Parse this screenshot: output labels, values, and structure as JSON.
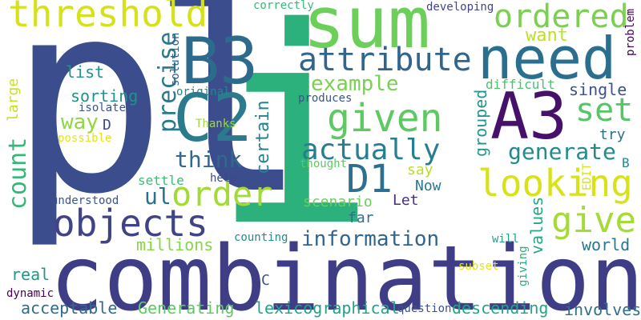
{
  "words": [
    {
      "text": "pl",
      "color": "#3b4d8c",
      "vertical": false
    },
    {
      "text": "i",
      "color": "#2cb17d",
      "vertical": false
    },
    {
      "text": "combination",
      "color": "#3e3d86",
      "vertical": false
    },
    {
      "text": "sum",
      "color": "#6ccf5a",
      "vertical": false
    },
    {
      "text": "need",
      "color": "#2a6f8e",
      "vertical": false
    },
    {
      "text": "B3",
      "color": "#2d6b8d",
      "vertical": false
    },
    {
      "text": "C2",
      "color": "#2b7a8d",
      "vertical": false
    },
    {
      "text": "A3",
      "color": "#46116a",
      "vertical": false
    },
    {
      "text": "threshold",
      "color": "#d5e21a",
      "vertical": false
    },
    {
      "text": "ordered",
      "color": "#7ad151",
      "vertical": false
    },
    {
      "text": "attribute",
      "color": "#31658e",
      "vertical": false
    },
    {
      "text": "given",
      "color": "#5ec962",
      "vertical": false
    },
    {
      "text": "set",
      "color": "#55c667",
      "vertical": false
    },
    {
      "text": "looking",
      "color": "#d8e219",
      "vertical": false
    },
    {
      "text": "actually",
      "color": "#277e8e",
      "vertical": false
    },
    {
      "text": "D1",
      "color": "#2c6f8e",
      "vertical": false
    },
    {
      "text": "order",
      "color": "#a2da37",
      "vertical": false
    },
    {
      "text": "objects",
      "color": "#404387",
      "vertical": false
    },
    {
      "text": "give",
      "color": "#a5db36",
      "vertical": false
    },
    {
      "text": "think",
      "color": "#31688e",
      "vertical": false
    },
    {
      "text": "generate",
      "color": "#238a8d",
      "vertical": false
    },
    {
      "text": "information",
      "color": "#31658e",
      "vertical": false
    },
    {
      "text": "example",
      "color": "#7ad151",
      "vertical": false
    },
    {
      "text": "want",
      "color": "#bddf26",
      "vertical": false
    },
    {
      "text": "precise",
      "color": "#2a788e",
      "vertical": true
    },
    {
      "text": "count",
      "color": "#35b779",
      "vertical": true
    },
    {
      "text": "certain",
      "color": "#26828e",
      "vertical": true
    },
    {
      "text": "grouped",
      "color": "#1f988b",
      "vertical": true
    },
    {
      "text": "values",
      "color": "#22a884",
      "vertical": true
    },
    {
      "text": "giving",
      "color": "#29af7f",
      "vertical": true
    },
    {
      "text": "large",
      "color": "#c8e020",
      "vertical": true
    },
    {
      "text": "solution",
      "color": "#33628d",
      "vertical": true
    },
    {
      "text": "problem",
      "color": "#440154",
      "vertical": true
    },
    {
      "text": "EDIT",
      "color": "#dde318",
      "vertical": true
    },
    {
      "text": "list",
      "color": "#21918c",
      "vertical": false
    },
    {
      "text": "sorting",
      "color": "#21918c",
      "vertical": false
    },
    {
      "text": "way",
      "color": "#8fd744",
      "vertical": false
    },
    {
      "text": "D",
      "color": "#3e4a89",
      "vertical": false
    },
    {
      "text": "isolate",
      "color": "#3b528b",
      "vertical": false
    },
    {
      "text": "possible",
      "color": "#e4e419",
      "vertical": false
    },
    {
      "text": "original",
      "color": "#25858e",
      "vertical": false
    },
    {
      "text": "Thanks",
      "color": "#9fda3a",
      "vertical": false
    },
    {
      "text": "produces",
      "color": "#39558c",
      "vertical": false
    },
    {
      "text": "thought",
      "color": "#5ec962",
      "vertical": false
    },
    {
      "text": "correctly",
      "color": "#37b878",
      "vertical": false
    },
    {
      "text": "developing",
      "color": "#414487",
      "vertical": false
    },
    {
      "text": "difficult",
      "color": "#4ac16d",
      "vertical": false
    },
    {
      "text": "single",
      "color": "#3b528b",
      "vertical": false
    },
    {
      "text": "try",
      "color": "#2c728e",
      "vertical": false
    },
    {
      "text": "B",
      "color": "#228b8d",
      "vertical": false
    },
    {
      "text": "say",
      "color": "#bade28",
      "vertical": false
    },
    {
      "text": "Now",
      "color": "#2a788e",
      "vertical": false
    },
    {
      "text": "Let",
      "color": "#472d7b",
      "vertical": false
    },
    {
      "text": "scenario",
      "color": "#6ccd5a",
      "vertical": false
    },
    {
      "text": "far",
      "color": "#2e6e8e",
      "vertical": false
    },
    {
      "text": "ul",
      "color": "#2d708e",
      "vertical": false
    },
    {
      "text": "settle",
      "color": "#3dbc74",
      "vertical": false
    },
    {
      "text": "help",
      "color": "#3e4989",
      "vertical": false
    },
    {
      "text": "understood",
      "color": "#3a548c",
      "vertical": false
    },
    {
      "text": "millions",
      "color": "#86d549",
      "vertical": false
    },
    {
      "text": "counting",
      "color": "#238a8d",
      "vertical": false
    },
    {
      "text": "will",
      "color": "#1fa287",
      "vertical": false
    },
    {
      "text": "world",
      "color": "#2a788e",
      "vertical": false
    },
    {
      "text": "subset",
      "color": "#e5e419",
      "vertical": false
    },
    {
      "text": "real",
      "color": "#1f988b",
      "vertical": false
    },
    {
      "text": "C",
      "color": "#3b528b",
      "vertical": false
    },
    {
      "text": "dynamic",
      "color": "#440154",
      "vertical": false
    },
    {
      "text": "acceptable",
      "color": "#2f6b8e",
      "vertical": false
    },
    {
      "text": "Generating",
      "color": "#5ec962",
      "vertical": false
    },
    {
      "text": "lexicographical",
      "color": "#20a386",
      "vertical": false
    },
    {
      "text": "question",
      "color": "#3b528b",
      "vertical": false
    },
    {
      "text": "descending",
      "color": "#21a585",
      "vertical": false
    },
    {
      "text": "involves",
      "color": "#2e6f8e",
      "vertical": false
    }
  ]
}
